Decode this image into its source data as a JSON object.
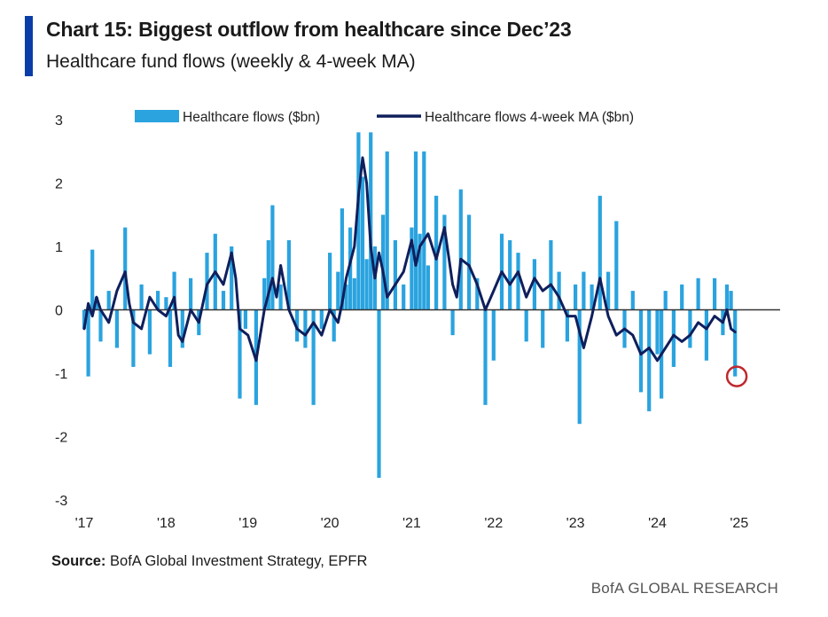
{
  "header": {
    "title": "Chart 15: Biggest outflow from healthcare since Dec’23",
    "subtitle": "Healthcare fund flows (weekly & 4-week MA)"
  },
  "footer": {
    "source_prefix": "Source:",
    "source_text": " BofA Global Investment Strategy, EPFR",
    "brand": "BofA GLOBAL RESEARCH"
  },
  "colors": {
    "accent": "#0a3da8",
    "bars": "#2aa3df",
    "ma_line": "#0f1f5c",
    "highlight": "#c0272d",
    "zero_line": "#333333"
  },
  "chart_data": {
    "type": "bar",
    "title": "Healthcare fund flows (weekly & 4-week MA)",
    "xlabel": "",
    "ylabel": "",
    "ylim": [
      -3,
      3
    ],
    "yticks": [
      "3",
      "2",
      "1",
      "0",
      "-1",
      "-2",
      "-3"
    ],
    "xlim": [
      2017,
      2025.5
    ],
    "xticks": [
      {
        "value": 2017,
        "label": "'17"
      },
      {
        "value": 2018,
        "label": "'18"
      },
      {
        "value": 2019,
        "label": "'19"
      },
      {
        "value": 2020,
        "label": "'20"
      },
      {
        "value": 2021,
        "label": "'21"
      },
      {
        "value": 2022,
        "label": "'22"
      },
      {
        "value": 2023,
        "label": "'23"
      },
      {
        "value": 2024,
        "label": "'24"
      },
      {
        "value": 2025,
        "label": "'25"
      }
    ],
    "legend": [
      "Healthcare flows ($bn)",
      "Healthcare flows 4-week MA ($bn)"
    ],
    "legend_position": "top-center",
    "series": [
      {
        "name": "Healthcare flows ($bn)",
        "kind": "bars",
        "points": [
          [
            2017.0,
            -0.3
          ],
          [
            2017.05,
            -1.05
          ],
          [
            2017.1,
            0.95
          ],
          [
            2017.15,
            0.2
          ],
          [
            2017.2,
            -0.5
          ],
          [
            2017.3,
            0.3
          ],
          [
            2017.4,
            -0.6
          ],
          [
            2017.5,
            1.3
          ],
          [
            2017.6,
            -0.9
          ],
          [
            2017.7,
            0.4
          ],
          [
            2017.8,
            -0.7
          ],
          [
            2017.9,
            0.3
          ],
          [
            2018.0,
            0.2
          ],
          [
            2018.05,
            -0.9
          ],
          [
            2018.1,
            0.6
          ],
          [
            2018.2,
            -0.6
          ],
          [
            2018.3,
            0.5
          ],
          [
            2018.4,
            -0.4
          ],
          [
            2018.5,
            0.9
          ],
          [
            2018.6,
            1.2
          ],
          [
            2018.7,
            0.3
          ],
          [
            2018.8,
            1.0
          ],
          [
            2018.9,
            -1.4
          ],
          [
            2018.97,
            -0.3
          ],
          [
            2019.1,
            -1.5
          ],
          [
            2019.2,
            0.5
          ],
          [
            2019.25,
            1.1
          ],
          [
            2019.3,
            1.65
          ],
          [
            2019.4,
            0.4
          ],
          [
            2019.5,
            1.1
          ],
          [
            2019.6,
            -0.5
          ],
          [
            2019.7,
            -0.6
          ],
          [
            2019.8,
            -1.5
          ],
          [
            2019.9,
            -0.3
          ],
          [
            2020.0,
            0.9
          ],
          [
            2020.05,
            -0.5
          ],
          [
            2020.1,
            0.6
          ],
          [
            2020.15,
            1.6
          ],
          [
            2020.2,
            0.4
          ],
          [
            2020.25,
            1.3
          ],
          [
            2020.3,
            0.5
          ],
          [
            2020.35,
            2.8
          ],
          [
            2020.4,
            2.1
          ],
          [
            2020.45,
            0.8
          ],
          [
            2020.5,
            2.8
          ],
          [
            2020.55,
            1.0
          ],
          [
            2020.6,
            -2.65
          ],
          [
            2020.65,
            1.5
          ],
          [
            2020.7,
            2.5
          ],
          [
            2020.8,
            1.1
          ],
          [
            2020.9,
            0.4
          ],
          [
            2021.0,
            1.3
          ],
          [
            2021.05,
            2.5
          ],
          [
            2021.1,
            1.2
          ],
          [
            2021.15,
            2.5
          ],
          [
            2021.2,
            0.7
          ],
          [
            2021.3,
            1.8
          ],
          [
            2021.4,
            1.5
          ],
          [
            2021.5,
            -0.4
          ],
          [
            2021.6,
            1.9
          ],
          [
            2021.7,
            1.5
          ],
          [
            2021.8,
            0.5
          ],
          [
            2021.9,
            -1.5
          ],
          [
            2022.0,
            -0.8
          ],
          [
            2022.1,
            1.2
          ],
          [
            2022.2,
            1.1
          ],
          [
            2022.3,
            0.9
          ],
          [
            2022.4,
            -0.5
          ],
          [
            2022.5,
            0.8
          ],
          [
            2022.6,
            -0.6
          ],
          [
            2022.7,
            1.1
          ],
          [
            2022.8,
            0.6
          ],
          [
            2022.9,
            -0.5
          ],
          [
            2023.0,
            0.4
          ],
          [
            2023.05,
            -1.8
          ],
          [
            2023.1,
            0.6
          ],
          [
            2023.2,
            0.4
          ],
          [
            2023.3,
            1.8
          ],
          [
            2023.4,
            0.6
          ],
          [
            2023.5,
            1.4
          ],
          [
            2023.6,
            -0.6
          ],
          [
            2023.7,
            0.3
          ],
          [
            2023.8,
            -1.3
          ],
          [
            2023.9,
            -1.6
          ],
          [
            2024.0,
            -0.7
          ],
          [
            2024.05,
            -1.4
          ],
          [
            2024.1,
            0.3
          ],
          [
            2024.2,
            -0.9
          ],
          [
            2024.3,
            0.4
          ],
          [
            2024.4,
            -0.6
          ],
          [
            2024.5,
            0.5
          ],
          [
            2024.6,
            -0.8
          ],
          [
            2024.7,
            0.5
          ],
          [
            2024.8,
            -0.4
          ],
          [
            2024.85,
            0.4
          ],
          [
            2024.9,
            0.3
          ],
          [
            2024.95,
            -1.05
          ]
        ]
      },
      {
        "name": "Healthcare flows 4-week MA ($bn)",
        "kind": "line",
        "points": [
          [
            2017.0,
            -0.3
          ],
          [
            2017.05,
            0.1
          ],
          [
            2017.1,
            -0.1
          ],
          [
            2017.15,
            0.2
          ],
          [
            2017.2,
            0.0
          ],
          [
            2017.3,
            -0.2
          ],
          [
            2017.4,
            0.3
          ],
          [
            2017.5,
            0.6
          ],
          [
            2017.55,
            0.1
          ],
          [
            2017.6,
            -0.2
          ],
          [
            2017.7,
            -0.3
          ],
          [
            2017.8,
            0.2
          ],
          [
            2017.9,
            0.0
          ],
          [
            2018.0,
            -0.1
          ],
          [
            2018.1,
            0.2
          ],
          [
            2018.15,
            -0.4
          ],
          [
            2018.2,
            -0.5
          ],
          [
            2018.3,
            0.0
          ],
          [
            2018.4,
            -0.2
          ],
          [
            2018.5,
            0.4
          ],
          [
            2018.6,
            0.6
          ],
          [
            2018.7,
            0.4
          ],
          [
            2018.8,
            0.9
          ],
          [
            2018.85,
            0.5
          ],
          [
            2018.9,
            -0.3
          ],
          [
            2019.0,
            -0.4
          ],
          [
            2019.1,
            -0.8
          ],
          [
            2019.2,
            0.0
          ],
          [
            2019.3,
            0.5
          ],
          [
            2019.35,
            0.2
          ],
          [
            2019.4,
            0.7
          ],
          [
            2019.5,
            0.0
          ],
          [
            2019.6,
            -0.3
          ],
          [
            2019.7,
            -0.4
          ],
          [
            2019.8,
            -0.2
          ],
          [
            2019.9,
            -0.4
          ],
          [
            2020.0,
            0.0
          ],
          [
            2020.1,
            -0.2
          ],
          [
            2020.15,
            0.1
          ],
          [
            2020.2,
            0.5
          ],
          [
            2020.3,
            1.0
          ],
          [
            2020.35,
            1.8
          ],
          [
            2020.4,
            2.4
          ],
          [
            2020.45,
            2.0
          ],
          [
            2020.5,
            1.0
          ],
          [
            2020.55,
            0.5
          ],
          [
            2020.6,
            0.9
          ],
          [
            2020.65,
            0.6
          ],
          [
            2020.7,
            0.2
          ],
          [
            2020.8,
            0.4
          ],
          [
            2020.9,
            0.6
          ],
          [
            2021.0,
            1.1
          ],
          [
            2021.05,
            0.7
          ],
          [
            2021.1,
            1.0
          ],
          [
            2021.2,
            1.2
          ],
          [
            2021.3,
            0.8
          ],
          [
            2021.4,
            1.3
          ],
          [
            2021.5,
            0.4
          ],
          [
            2021.55,
            0.2
          ],
          [
            2021.6,
            0.8
          ],
          [
            2021.7,
            0.7
          ],
          [
            2021.8,
            0.4
          ],
          [
            2021.9,
            0.0
          ],
          [
            2022.0,
            0.3
          ],
          [
            2022.1,
            0.6
          ],
          [
            2022.2,
            0.4
          ],
          [
            2022.3,
            0.6
          ],
          [
            2022.4,
            0.2
          ],
          [
            2022.5,
            0.5
          ],
          [
            2022.6,
            0.3
          ],
          [
            2022.7,
            0.4
          ],
          [
            2022.8,
            0.2
          ],
          [
            2022.9,
            -0.1
          ],
          [
            2023.0,
            -0.1
          ],
          [
            2023.1,
            -0.6
          ],
          [
            2023.2,
            -0.1
          ],
          [
            2023.3,
            0.5
          ],
          [
            2023.4,
            -0.1
          ],
          [
            2023.5,
            -0.4
          ],
          [
            2023.6,
            -0.3
          ],
          [
            2023.7,
            -0.4
          ],
          [
            2023.8,
            -0.7
          ],
          [
            2023.9,
            -0.6
          ],
          [
            2024.0,
            -0.8
          ],
          [
            2024.1,
            -0.6
          ],
          [
            2024.2,
            -0.4
          ],
          [
            2024.3,
            -0.5
          ],
          [
            2024.4,
            -0.4
          ],
          [
            2024.5,
            -0.2
          ],
          [
            2024.6,
            -0.3
          ],
          [
            2024.7,
            -0.1
          ],
          [
            2024.8,
            -0.2
          ],
          [
            2024.85,
            0.0
          ],
          [
            2024.9,
            -0.3
          ],
          [
            2024.95,
            -0.35
          ]
        ]
      }
    ],
    "annotations": [
      {
        "type": "circle",
        "x": 2024.97,
        "y": -1.05,
        "meaning": "latest weekly outflow highlighted"
      }
    ]
  }
}
